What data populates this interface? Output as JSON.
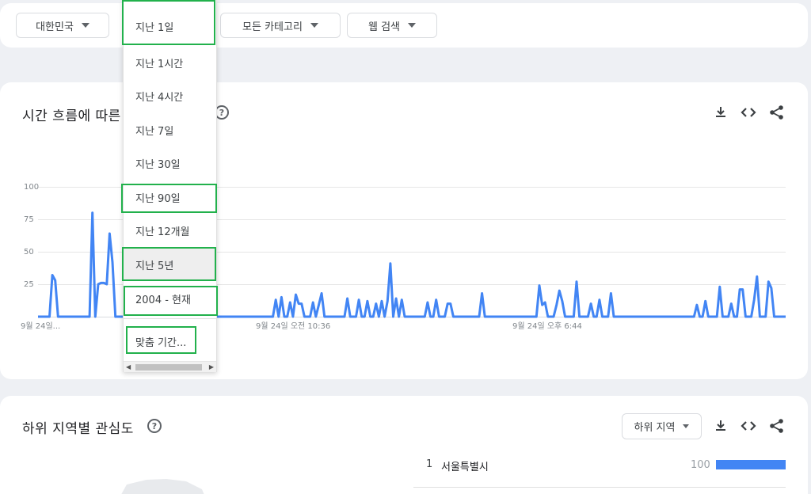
{
  "filters": {
    "region": "대한민국",
    "category": "모든 카테고리",
    "search_type": "웹 검색"
  },
  "period_menu": {
    "selected_display": "지난 1일",
    "items": [
      "지난 1시간",
      "지난 4시간",
      "지난 7일",
      "지난 30일",
      "지난 90일",
      "지난 12개월",
      "지난 5년",
      "2004 - 현재"
    ],
    "custom": "맞춤 기간..."
  },
  "chart_card": {
    "title": "시간 흐름에 따른",
    "help": "?"
  },
  "chart_data": {
    "type": "line",
    "title": "시간 흐름에 따른",
    "ylim": [
      0,
      100
    ],
    "y_ticks": [
      "100",
      "75",
      "50",
      "25"
    ],
    "x_tick_labels": [
      "9월 24일...",
      "9월 24일 오전 10:36",
      "9월 24일 오후 6:44"
    ],
    "color": "#4285f4",
    "values": [
      0,
      0,
      0,
      0,
      0,
      32,
      28,
      0,
      0,
      0,
      0,
      0,
      0,
      0,
      0,
      0,
      0,
      0,
      0,
      80,
      0,
      25,
      26,
      26,
      25,
      64,
      42,
      0,
      0,
      0,
      0,
      0,
      0,
      0,
      0,
      0,
      0,
      0,
      0,
      0,
      0,
      0,
      0,
      0,
      0,
      0,
      0,
      0,
      0,
      0,
      28,
      0,
      0,
      0,
      0,
      0,
      0,
      0,
      0,
      0,
      0,
      0,
      0,
      0,
      0,
      0,
      0,
      0,
      0,
      0,
      0,
      0,
      0,
      0,
      0,
      0,
      0,
      0,
      0,
      0,
      0,
      0,
      0,
      13,
      0,
      15,
      0,
      0,
      11,
      0,
      17,
      10,
      10,
      0,
      0,
      0,
      11,
      0,
      9,
      18,
      0,
      0,
      0,
      0,
      0,
      0,
      0,
      0,
      14,
      0,
      0,
      0,
      13,
      0,
      0,
      12,
      0,
      0,
      10,
      0,
      12,
      0,
      12,
      41,
      0,
      14,
      0,
      13,
      0,
      0,
      0,
      0,
      0,
      0,
      0,
      0,
      11,
      0,
      0,
      13,
      0,
      0,
      0,
      10,
      10,
      0,
      0,
      0,
      0,
      0,
      0,
      0,
      0,
      0,
      0,
      18,
      0,
      0,
      0,
      0,
      0,
      0,
      0,
      0,
      0,
      0,
      0,
      0,
      0,
      0,
      0,
      0,
      0,
      0,
      0,
      24,
      9,
      11,
      0,
      0,
      0,
      9,
      20,
      12,
      0,
      0,
      0,
      0,
      27,
      0,
      0,
      0,
      0,
      10,
      0,
      0,
      13,
      0,
      0,
      0,
      18,
      0,
      0,
      0,
      0,
      0,
      0,
      0,
      0,
      0,
      0,
      0,
      0,
      0,
      0,
      0,
      0,
      0,
      0,
      0,
      0,
      0,
      0,
      0,
      0,
      0,
      0,
      0,
      0,
      0,
      9,
      0,
      0,
      12,
      0,
      0,
      0,
      0,
      23,
      0,
      0,
      0,
      10,
      0,
      0,
      21,
      21,
      0,
      0,
      0,
      13,
      31,
      0,
      0,
      0,
      27,
      22,
      0,
      0,
      0,
      0,
      0
    ]
  },
  "region_card": {
    "title": "하위 지역별 관심도",
    "help": "?",
    "dropdown": "하위 지역",
    "ranks": [
      {
        "rank": "1",
        "name": "서울특별시",
        "value": "100",
        "fraction": 1.0
      }
    ]
  },
  "icons": {
    "download": "download-icon",
    "embed": "embed-icon",
    "share": "share-icon"
  }
}
